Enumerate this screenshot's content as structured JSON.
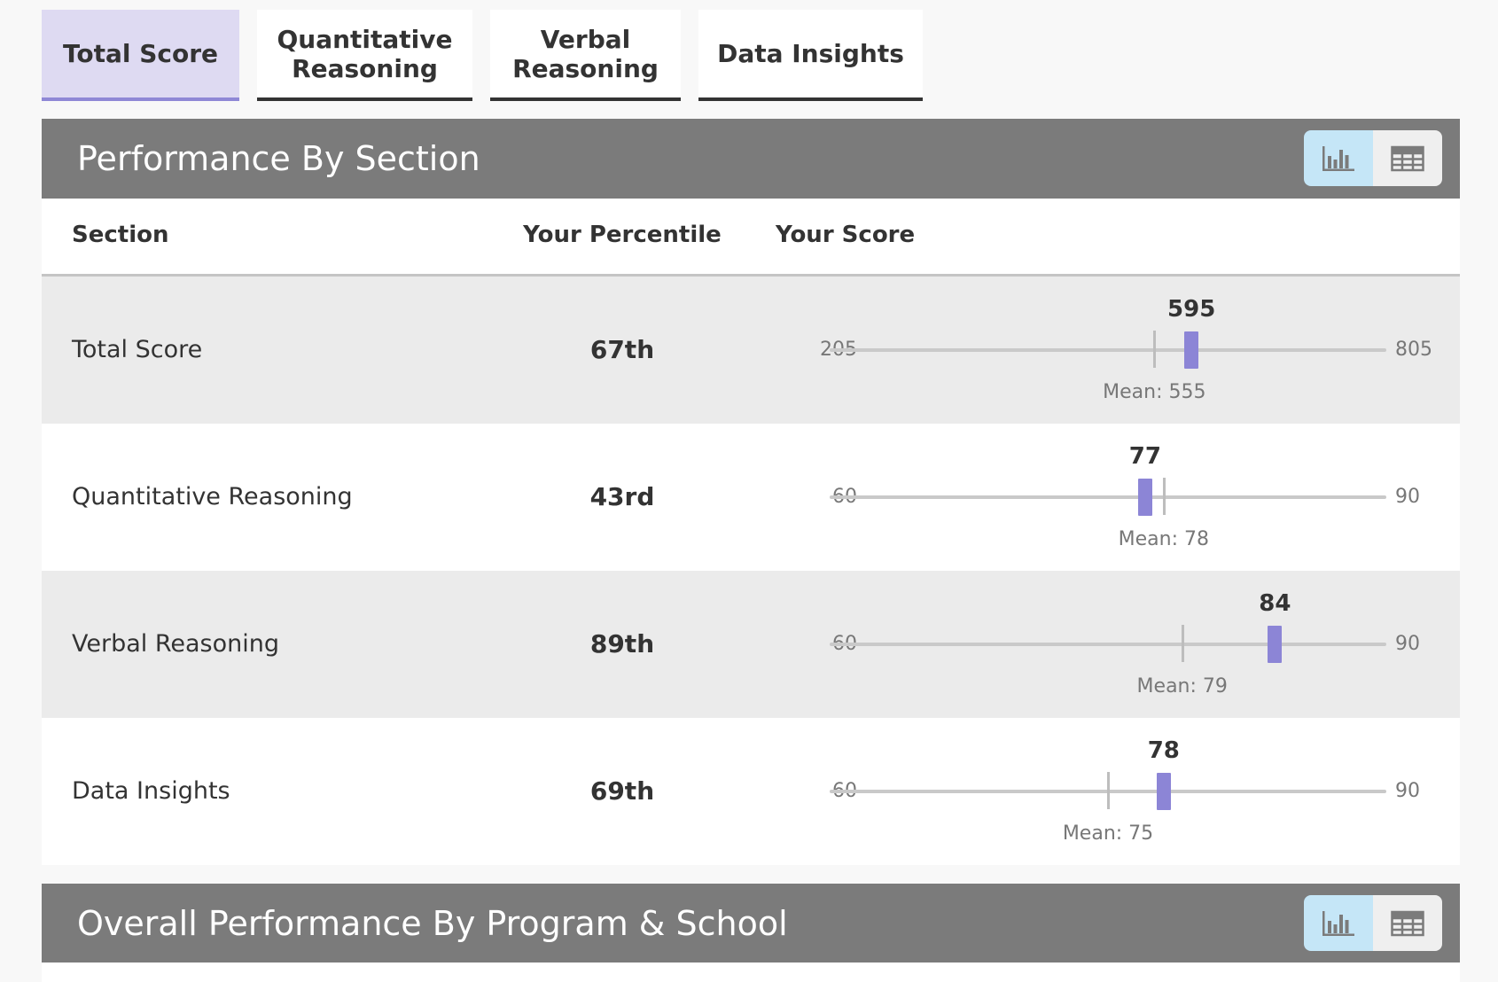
{
  "tabs": [
    {
      "label": "Total Score",
      "active": true
    },
    {
      "label": "Quantitative\nReasoning",
      "active": false
    },
    {
      "label": "Verbal\nReasoning",
      "active": false
    },
    {
      "label": "Data Insights",
      "active": false
    }
  ],
  "panels": {
    "section": {
      "title": "Performance By Section"
    },
    "program": {
      "title": "Overall Performance By Program & School"
    }
  },
  "view_toggle": {
    "active": "chart",
    "icons": [
      "bar-chart-icon",
      "table-grid-icon"
    ]
  },
  "table": {
    "headers": {
      "section": "Section",
      "percentile": "Your Percentile",
      "score": "Your Score"
    },
    "rows": [
      {
        "section": "Total Score",
        "percentile": "67th",
        "min": 205,
        "max": 805,
        "score": 595,
        "mean": 555,
        "score_text": "595",
        "min_text": "205",
        "max_text": "805",
        "mean_text": "Mean: 555"
      },
      {
        "section": "Quantitative Reasoning",
        "percentile": "43rd",
        "min": 60,
        "max": 90,
        "score": 77,
        "mean": 78,
        "score_text": "77",
        "min_text": "60",
        "max_text": "90",
        "mean_text": "Mean: 78"
      },
      {
        "section": "Verbal Reasoning",
        "percentile": "89th",
        "min": 60,
        "max": 90,
        "score": 84,
        "mean": 79,
        "score_text": "84",
        "min_text": "60",
        "max_text": "90",
        "mean_text": "Mean: 79"
      },
      {
        "section": "Data Insights",
        "percentile": "69th",
        "min": 60,
        "max": 90,
        "score": 78,
        "mean": 75,
        "score_text": "78",
        "min_text": "60",
        "max_text": "90",
        "mean_text": "Mean: 75"
      }
    ]
  },
  "colors": {
    "accent": "#8c85d6",
    "active_tab_bg": "#dedaf2",
    "panel_header_bg": "#7b7b7b",
    "toggle_active_bg": "#c5e6f7",
    "row_alt_bg": "#ebebeb"
  }
}
